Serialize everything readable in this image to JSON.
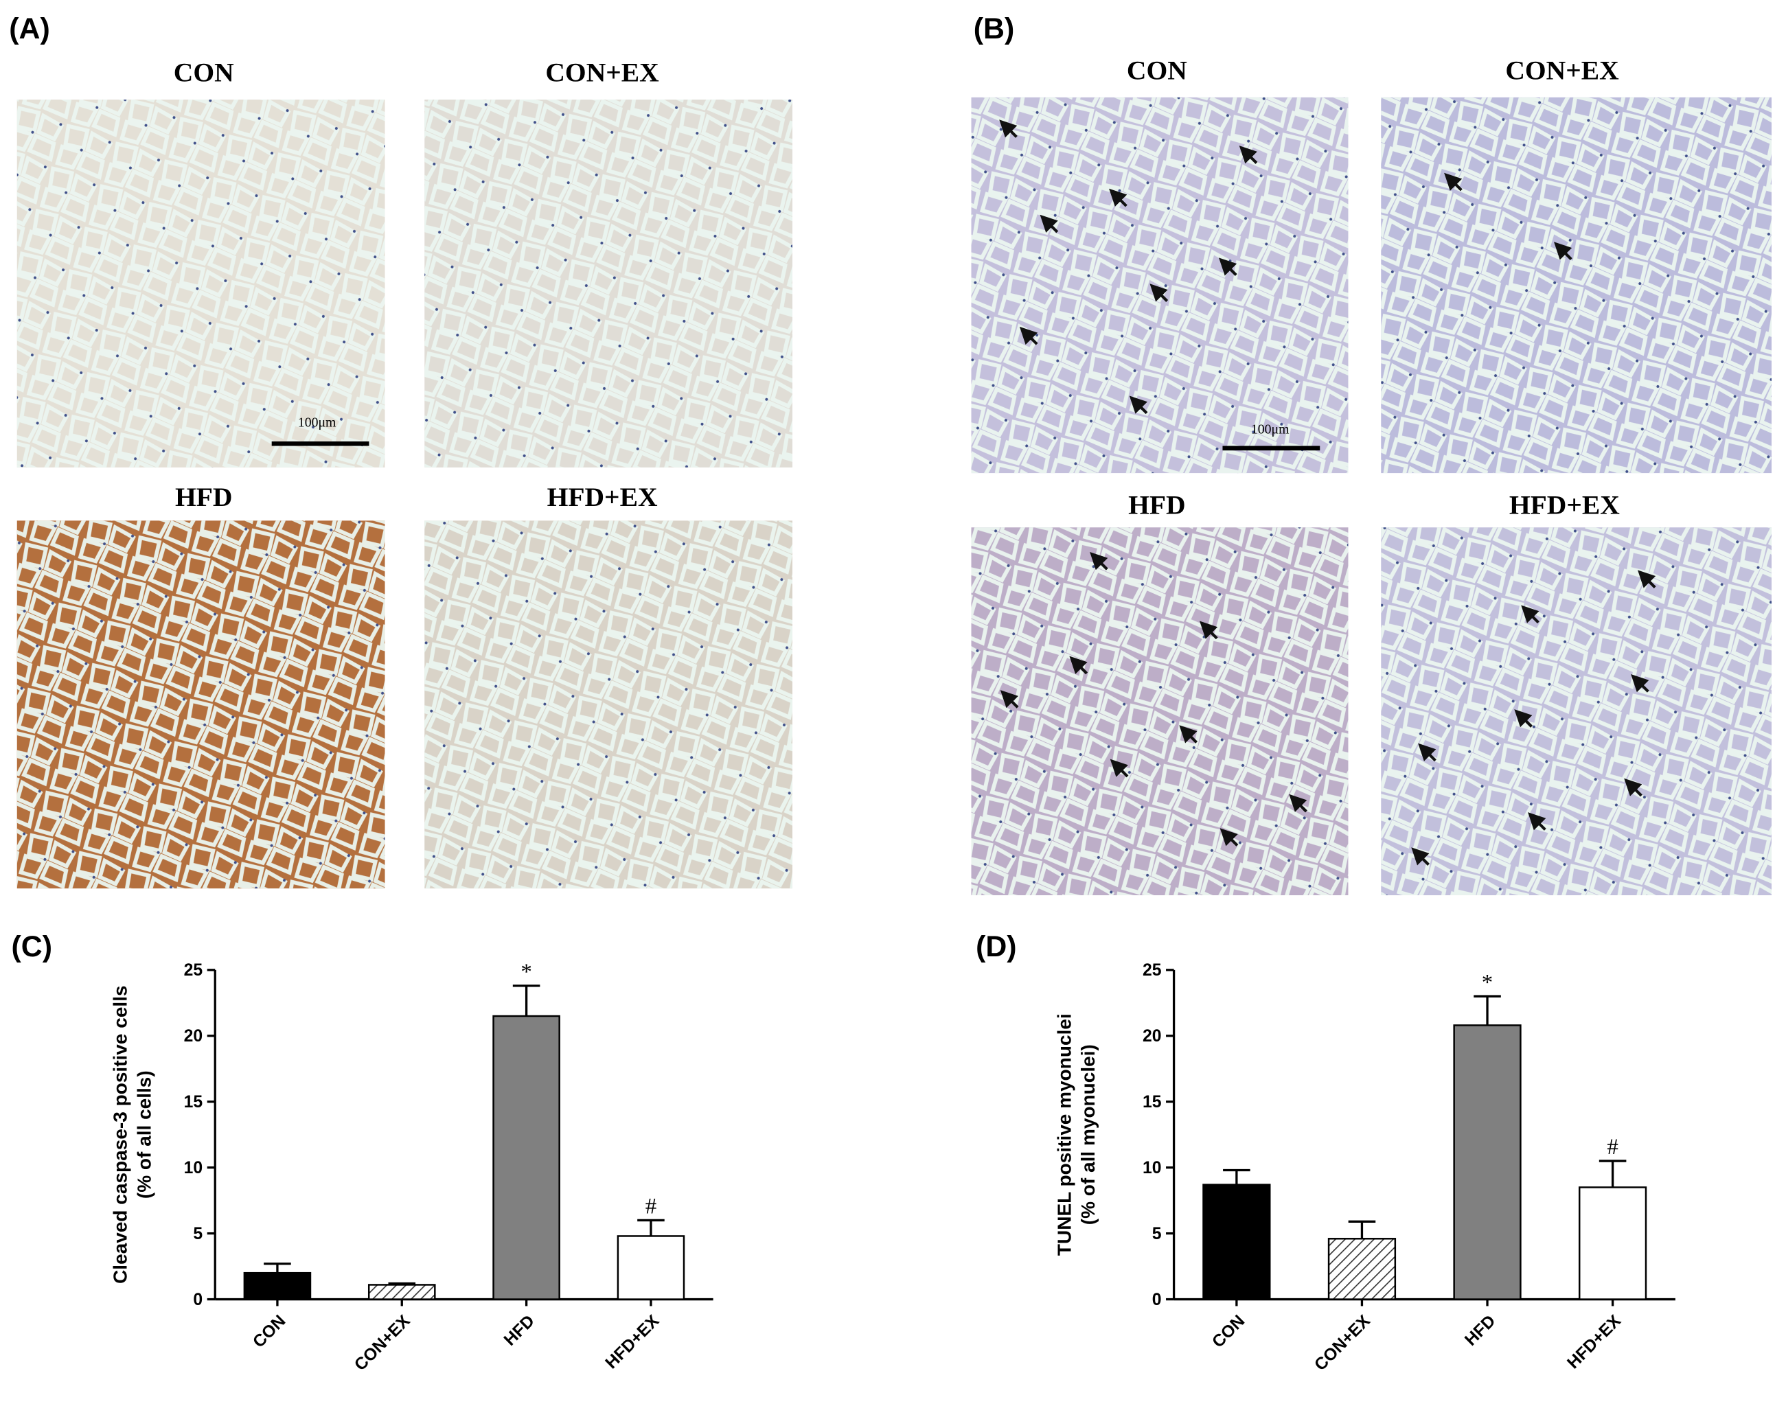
{
  "panels": [
    {
      "label": "(A)",
      "images": [
        {
          "title": "CON"
        },
        {
          "title": "CON+EX"
        },
        {
          "title": "HFD"
        },
        {
          "title": "HFD+EX"
        }
      ],
      "scale_bar": "100μm"
    },
    {
      "label": "(B)",
      "images": [
        {
          "title": "CON"
        },
        {
          "title": "CON+EX"
        },
        {
          "title": "HFD"
        },
        {
          "title": "HFD+EX"
        }
      ],
      "scale_bar": "100μm"
    }
  ],
  "chart_data": [
    {
      "type": "bar",
      "panel_label": "(C)",
      "ylabel": [
        "Cleaved caspase-3 positive cells",
        "(% of all cells)"
      ],
      "categories": [
        "CON",
        "CON+EX",
        "HFD",
        "HFD+EX"
      ],
      "values": [
        2.0,
        1.1,
        21.5,
        4.8
      ],
      "errors": [
        0.7,
        0.1,
        2.3,
        1.2
      ],
      "colors": [
        "#000000",
        "#ffffff",
        "#808080",
        "#ffffff"
      ],
      "hatch": [
        false,
        true,
        false,
        false
      ],
      "annotations": [
        null,
        null,
        "*",
        "#"
      ],
      "ylim": [
        0,
        25
      ],
      "yticks": [
        0,
        5,
        10,
        15,
        20,
        25
      ]
    },
    {
      "type": "bar",
      "panel_label": "(D)",
      "ylabel": [
        "TUNEL positive myonuclei",
        "(% of all myonuclei)"
      ],
      "categories": [
        "CON",
        "CON+EX",
        "HFD",
        "HFD+EX"
      ],
      "values": [
        8.7,
        4.6,
        20.8,
        8.5
      ],
      "errors": [
        1.1,
        1.3,
        2.2,
        2.0
      ],
      "colors": [
        "#000000",
        "#ffffff",
        "#808080",
        "#ffffff"
      ],
      "hatch": [
        false,
        true,
        false,
        false
      ],
      "annotations": [
        null,
        null,
        "*",
        "#"
      ],
      "ylim": [
        0,
        25
      ],
      "yticks": [
        0,
        5,
        10,
        15,
        20,
        25
      ]
    }
  ]
}
